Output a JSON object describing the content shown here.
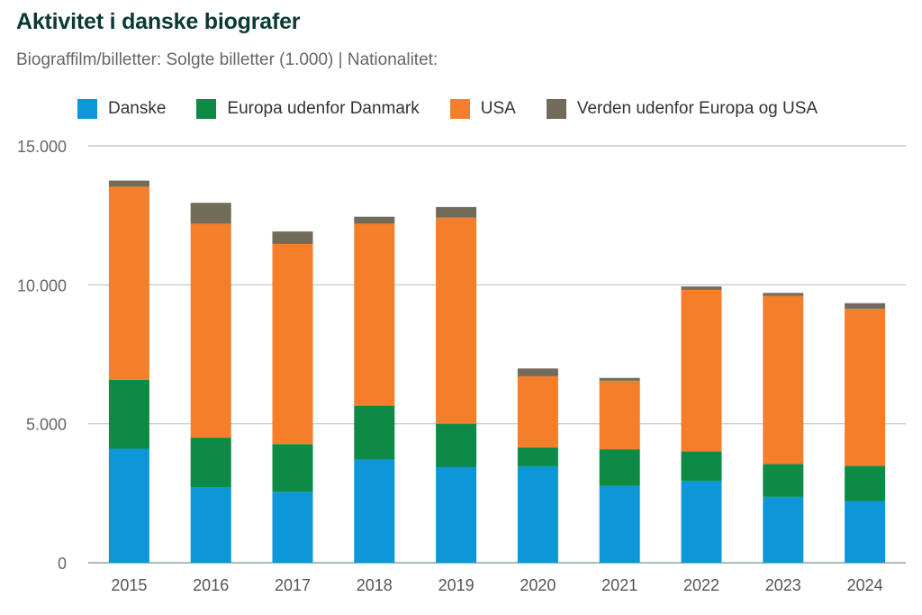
{
  "chart_data": {
    "type": "bar",
    "stacked": true,
    "title": "Aktivitet i danske biografer",
    "subtitle": "Biograffilm/billetter: Solgte billetter (1.000) | Nationalitet:",
    "xlabel": "",
    "ylabel": "",
    "ylim": [
      0,
      15000
    ],
    "yticks": [
      0,
      5000,
      10000,
      15000
    ],
    "ytick_labels": [
      "0",
      "5.000",
      "10.000",
      "15.000"
    ],
    "grid": true,
    "legend_position": "top",
    "categories": [
      "2015",
      "2016",
      "2017",
      "2018",
      "2019",
      "2020",
      "2021",
      "2022",
      "2023",
      "2024"
    ],
    "series": [
      {
        "name": "Danske",
        "color": "#0d97d9",
        "values": [
          4100,
          2720,
          2550,
          3700,
          3450,
          3470,
          2760,
          2950,
          2370,
          2220
        ]
      },
      {
        "name": "Europa udenfor Danmark",
        "color": "#0d8a45",
        "values": [
          2480,
          1780,
          1720,
          1950,
          1550,
          680,
          1320,
          1050,
          1180,
          1270
        ]
      },
      {
        "name": "USA",
        "color": "#f47e29",
        "values": [
          6950,
          7700,
          7200,
          6550,
          7420,
          2560,
          2470,
          5820,
          6050,
          5650
        ]
      },
      {
        "name": "Verden udenfor Europa og USA",
        "color": "#726b5a",
        "values": [
          220,
          750,
          450,
          250,
          380,
          280,
          100,
          120,
          110,
          200
        ]
      }
    ]
  }
}
